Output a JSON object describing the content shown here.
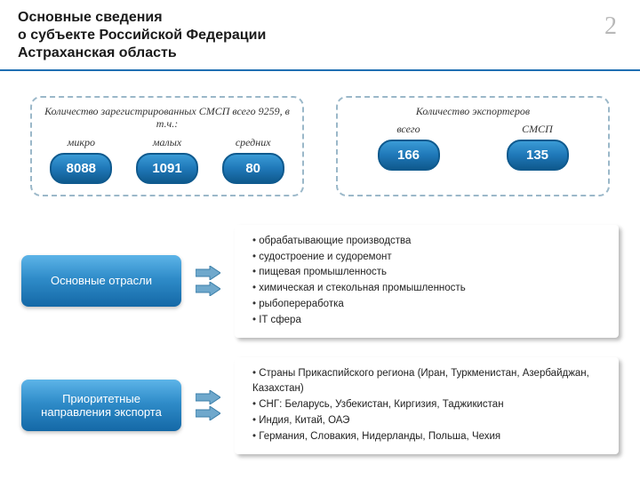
{
  "header": {
    "title_line1": "Основные сведения",
    "title_line2": "о субъекте Российской Федерации",
    "title_line3": "Астраханская область",
    "page_number": "2",
    "underline_color": "#1f6fb2"
  },
  "stats": {
    "left_group": {
      "title": "Количество зарегистрированных СМСП всего 9259, в т.ч.:",
      "items": [
        {
          "label": "микро",
          "value": "8088"
        },
        {
          "label": "малых",
          "value": "1091"
        },
        {
          "label": "средних",
          "value": "80"
        }
      ]
    },
    "right_group": {
      "title": "Количество экспортеров",
      "items": [
        {
          "label": "всего",
          "value": "166"
        },
        {
          "label": "СМСП",
          "value": "135"
        }
      ]
    },
    "dashed_border_color": "#9bb8c9",
    "pill_gradient": [
      "#3a9bd6",
      "#1f78b8",
      "#0f5a8e"
    ]
  },
  "sections": [
    {
      "label": "Основные отрасли",
      "bullets": [
        "обрабатывающие производства",
        "судостроение и судоремонт",
        "пищевая промышленность",
        "химическая и стекольная промышленность",
        "рыбопереработка",
        "IT сфера"
      ]
    },
    {
      "label": "Приоритетные направления экспорта",
      "bullets": [
        "Страны Прикаспийского региона (Иран, Туркменистан, Азербайджан, Казахстан)",
        "СНГ: Беларусь, Узбекистан, Киргизия, Таджикистан",
        "Индия, Китай, ОАЭ",
        "Германия, Словакия, Нидерланды, Польша, Чехия"
      ]
    }
  ],
  "section_label_gradient": [
    "#5db4e8",
    "#2f8cc9",
    "#1468a6"
  ],
  "arrow_colors": {
    "fill": "#6fa8cc",
    "stroke": "#3b7ea8"
  }
}
